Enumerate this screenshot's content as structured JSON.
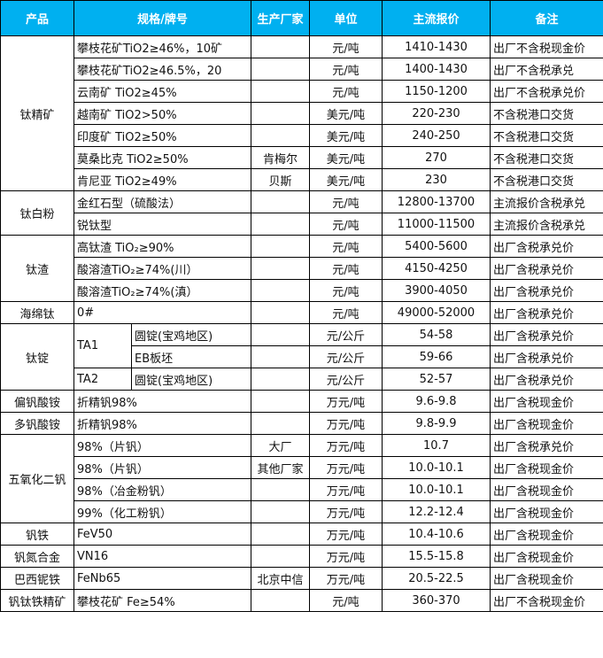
{
  "header": {
    "product": "产品",
    "spec": "规格/牌号",
    "maker": "生产厂家",
    "unit": "单位",
    "price": "主流报价",
    "note": "备注"
  },
  "colors": {
    "header_bg": "#00B0F0",
    "header_text": "#ffffff",
    "border": "#000000"
  },
  "groups": [
    {
      "product": "钛精矿",
      "rows": [
        {
          "spec": "攀枝花矿TiO2≥46%，10矿",
          "maker": "",
          "unit": "元/吨",
          "price": "1410-1430",
          "note": "出厂不含税现金价"
        },
        {
          "spec": "攀枝花矿TiO2≥46.5%，20",
          "maker": "",
          "unit": "元/吨",
          "price": "1400-1430",
          "note": "出厂不含税承兑"
        },
        {
          "spec": "云南矿 TiO2≥45%",
          "maker": "",
          "unit": "元/吨",
          "price": "1150-1200",
          "note": "出厂不含税承兑价"
        },
        {
          "spec": "越南矿 TiO2>50%",
          "maker": "",
          "unit": "美元/吨",
          "price": "220-230",
          "note": "不含税港口交货"
        },
        {
          "spec": "印度矿 TiO2≥50%",
          "maker": "",
          "unit": "美元/吨",
          "price": "240-250",
          "note": "不含税港口交货"
        },
        {
          "spec": "莫桑比克 TiO2≥50%",
          "maker": "肯梅尔",
          "unit": "美元/吨",
          "price": "270",
          "note": "不含税港口交货"
        },
        {
          "spec": "肯尼亚 TiO2≥49%",
          "maker": "贝斯",
          "unit": "美元/吨",
          "price": "230",
          "note": "不含税港口交货"
        }
      ]
    },
    {
      "product": "钛白粉",
      "rows": [
        {
          "spec": "金红石型（硫酸法）",
          "maker": "",
          "unit": "元/吨",
          "price": "12800-13700",
          "note": "主流报价含税承兑"
        },
        {
          "spec": "锐钛型",
          "maker": "",
          "unit": "元/吨",
          "price": "11000-11500",
          "note": "主流报价含税承兑"
        }
      ]
    },
    {
      "product": "钛渣",
      "rows": [
        {
          "spec": "高钛渣 TiO₂≥90%",
          "maker": "",
          "unit": "元/吨",
          "price": "5400-5600",
          "note": "出厂含税承兑价"
        },
        {
          "spec": "酸溶渣TiO₂≥74%(川）",
          "maker": "",
          "unit": "元/吨",
          "price": "4150-4250",
          "note": "出厂含税承兑价"
        },
        {
          "spec": "酸溶渣TiO₂≥74%(滇）",
          "maker": "",
          "unit": "元/吨",
          "price": "3900-4050",
          "note": "出厂含税承兑价"
        }
      ]
    },
    {
      "product": "海绵钛",
      "rows": [
        {
          "spec": "0#",
          "maker": "",
          "unit": "元/吨",
          "price": "49000-52000",
          "note": "出厂含税承兑价"
        }
      ]
    },
    {
      "product": "钛锭",
      "rows": [
        {
          "grade": "TA1",
          "spec": "圆锭(宝鸡地区)",
          "maker": "",
          "unit": "元/公斤",
          "price": "54-58",
          "note": "出厂含税承兑价"
        },
        {
          "grade": "TA1",
          "spec": "EB板坯",
          "maker": "",
          "unit": "元/公斤",
          "price": "59-66",
          "note": "出厂含税承兑价"
        },
        {
          "grade": "TA2",
          "spec": "圆锭(宝鸡地区)",
          "maker": "",
          "unit": "元/公斤",
          "price": "52-57",
          "note": "出厂含税承兑价"
        }
      ]
    },
    {
      "product": "偏钒酸铵",
      "rows": [
        {
          "spec": "折精钒98%",
          "maker": "",
          "unit": "万元/吨",
          "price": "9.6-9.8",
          "note": "出厂含税现金价"
        }
      ]
    },
    {
      "product": "多钒酸铵",
      "rows": [
        {
          "spec": "折精钒98%",
          "maker": "",
          "unit": "万元/吨",
          "price": "9.8-9.9",
          "note": "出厂含税现金价"
        }
      ]
    },
    {
      "product": "五氧化二钒",
      "rows": [
        {
          "spec": "98%（片钒）",
          "maker": "大厂",
          "unit": "万元/吨",
          "price": "10.7",
          "note": "出厂含税承兑价"
        },
        {
          "spec": "98%（片钒）",
          "maker": "其他厂家",
          "unit": "万元/吨",
          "price": "10.0-10.1",
          "note": "出厂含税现金价"
        },
        {
          "spec": "98%（冶金粉钒）",
          "maker": "",
          "unit": "万元/吨",
          "price": "10.0-10.1",
          "note": "出厂含税现金价"
        },
        {
          "spec": "99%（化工粉钒）",
          "maker": "",
          "unit": "万元/吨",
          "price": "12.2-12.4",
          "note": "出厂含税现金价"
        }
      ]
    },
    {
      "product": "钒铁",
      "rows": [
        {
          "spec": "FeV50",
          "maker": "",
          "unit": "万元/吨",
          "price": "10.4-10.6",
          "note": "出厂含税现金价"
        }
      ]
    },
    {
      "product": "钒氮合金",
      "rows": [
        {
          "spec": "VN16",
          "maker": "",
          "unit": "万元/吨",
          "price": "15.5-15.8",
          "note": "出厂含税现金价"
        }
      ]
    },
    {
      "product": "巴西铌铁",
      "rows": [
        {
          "spec": "FeNb65",
          "maker": "北京中信",
          "unit": "万元/吨",
          "price": "20.5-22.5",
          "note": "出厂含税现金价"
        }
      ]
    },
    {
      "product": "钒钛铁精矿",
      "rows": [
        {
          "spec": "攀枝花矿 Fe≥54%",
          "maker": "",
          "unit": "元/吨",
          "price": "360-370",
          "note": "出厂不含税现金价"
        }
      ]
    }
  ]
}
